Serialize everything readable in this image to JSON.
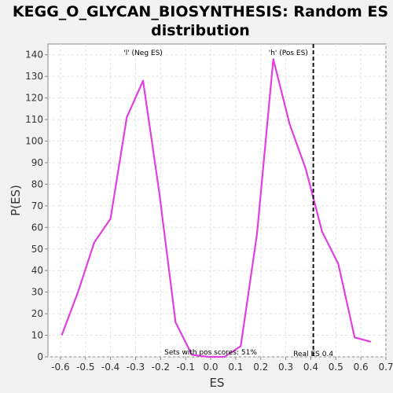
{
  "chart_data": {
    "type": "line",
    "title_lines": [
      "KEGG_O_GLYCAN_BIOSYNTHESIS: Random ES",
      "distribution"
    ],
    "xlabel": "ES",
    "ylabel": "P(ES)",
    "xlim": [
      -0.65,
      0.7
    ],
    "ylim": [
      0,
      145
    ],
    "x_ticks": [
      -0.6,
      -0.5,
      -0.4,
      -0.3,
      -0.2,
      -0.1,
      0.0,
      0.1,
      0.2,
      0.3,
      0.4,
      0.5,
      0.6,
      0.7
    ],
    "x_tick_labels": [
      "-0.6",
      "-0.5",
      "-0.4",
      "-0.3",
      "-0.2",
      "-0.1",
      "0.0",
      "0.1",
      "0.2",
      "0.3",
      "0.4",
      "0.5",
      "0.6",
      "0.7"
    ],
    "y_ticks": [
      0,
      10,
      20,
      30,
      40,
      50,
      60,
      70,
      80,
      90,
      100,
      110,
      120,
      130,
      140
    ],
    "y_tick_labels": [
      "0",
      "10",
      "20",
      "30",
      "40",
      "50",
      "60",
      "70",
      "80",
      "90",
      "100",
      "110",
      "120",
      "130",
      "140"
    ],
    "grid": true,
    "series": [
      {
        "color": "#e040e0",
        "x": [
          -0.595,
          -0.53,
          -0.465,
          -0.4,
          -0.335,
          -0.27,
          -0.205,
          -0.14,
          -0.075,
          -0.01,
          0.055,
          0.12,
          0.185,
          0.25,
          0.315,
          0.38,
          0.445,
          0.51,
          0.575,
          0.64
        ],
        "y": [
          10,
          30,
          53,
          64,
          111,
          128,
          76,
          16,
          1,
          0,
          0,
          5,
          57,
          138,
          108,
          87,
          58,
          43,
          9,
          7
        ]
      }
    ],
    "real_es": {
      "value": 0.41,
      "label": "Real ES 0.4"
    },
    "annotations": {
      "neg_label": "'l' (Neg ES)",
      "neg_color": "#2222cc",
      "pos_label": "'h' (Pos ES)",
      "pos_color": "#cc2222",
      "sets_label": "Sets with pos scores: 51%"
    }
  }
}
